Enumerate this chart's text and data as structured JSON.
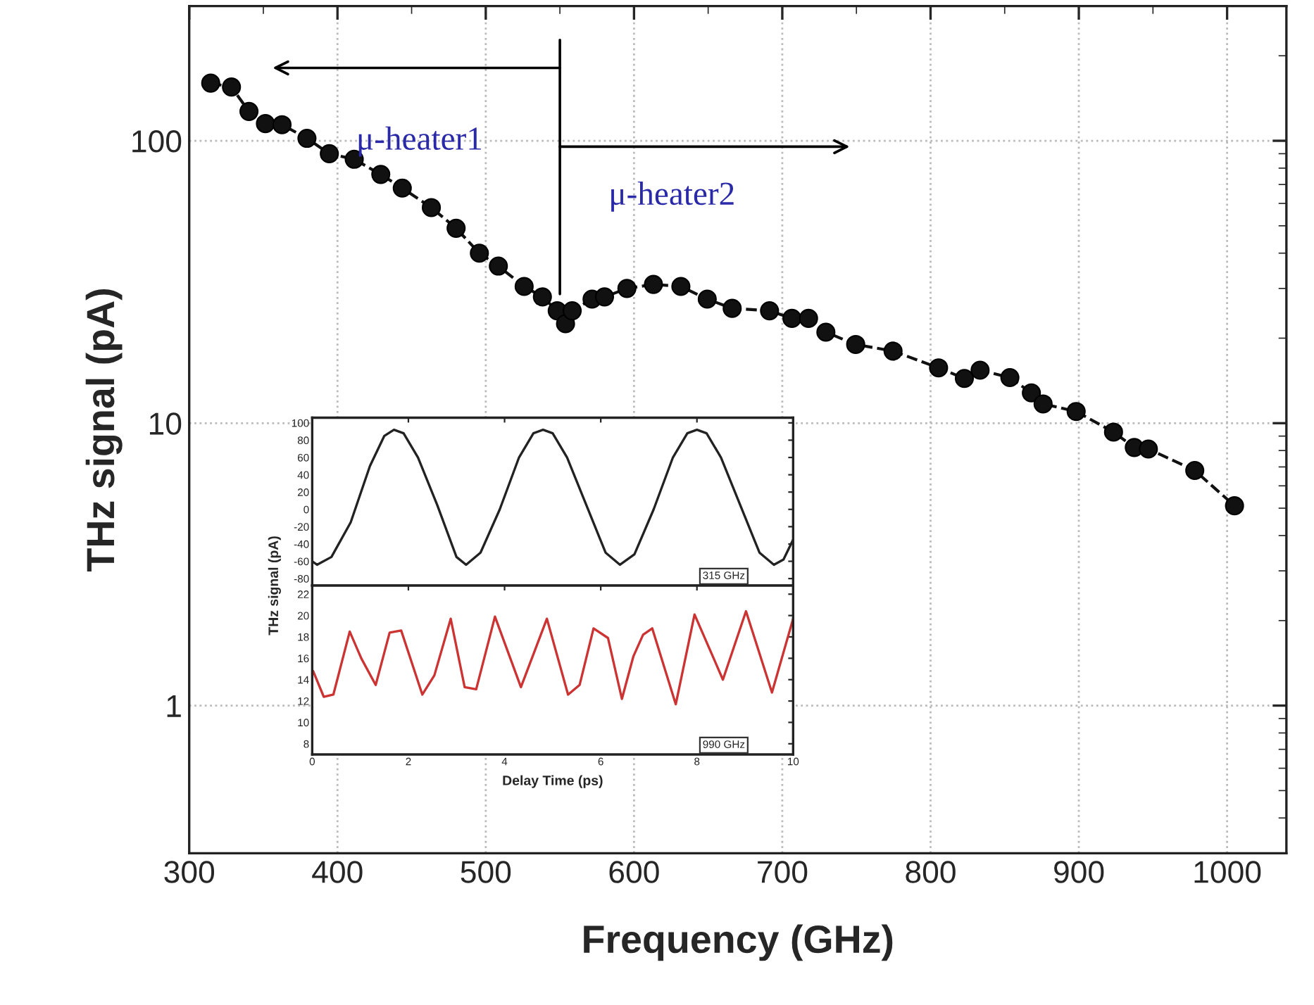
{
  "chart_data": [
    {
      "type": "line",
      "xlabel": "Frequency (GHz)",
      "ylabel": "THz signal (pA)",
      "log": "y",
      "xlim": [
        300,
        1040
      ],
      "ylim": [
        0.3,
        300
      ],
      "xticks": [
        300,
        400,
        500,
        600,
        700,
        800,
        900,
        1000
      ],
      "yticks": [
        1,
        10,
        100
      ],
      "grid": true,
      "marker": "circle",
      "line_style": "dashed",
      "x": [
        314.5,
        328.5,
        340.3,
        351.4,
        362.6,
        379.4,
        394.5,
        411.3,
        429.2,
        443.7,
        463.3,
        480,
        495.7,
        508.5,
        525.9,
        538.2,
        548.2,
        553.8,
        558.3,
        571.7,
        580.1,
        595.2,
        613.1,
        631.6,
        649.4,
        666.2,
        691.4,
        706.5,
        717.7,
        729.4,
        749.5,
        774.7,
        805.4,
        822.8,
        833.4,
        853.5,
        868,
        875.9,
        898.2,
        923.4,
        937.4,
        946.9,
        978.2,
        1005
      ],
      "series": [
        {
          "color": "#111111",
          "values": [
            160,
            155,
            127,
            115,
            114,
            102,
            90,
            86,
            76,
            68,
            58,
            49,
            40,
            36,
            30.5,
            28,
            25,
            22.5,
            25,
            27.5,
            28,
            30,
            31,
            30.5,
            27.5,
            25.5,
            25,
            23.5,
            23.5,
            21,
            19,
            18,
            15.7,
            14.4,
            15.4,
            14.5,
            12.8,
            11.7,
            11,
            9.3,
            8.2,
            8.1,
            6.8,
            5.1
          ]
        }
      ],
      "ref_lines": [
        {
          "axis": "x",
          "value": 550,
          "color": "#000000",
          "line_style": "solid"
        }
      ],
      "annotations": [
        "μ-heater1",
        "μ-heater2"
      ]
    },
    {
      "type": "line",
      "ylabel": "THz signal (pA)",
      "xlim": [
        0,
        10
      ],
      "ylim": [
        -88,
        106
      ],
      "xticks": [
        0,
        2,
        4,
        6,
        8,
        10
      ],
      "yticks": [
        -80,
        -60,
        -40,
        -20,
        0,
        20,
        40,
        60,
        80,
        100
      ],
      "tick_labels": "y",
      "x": [
        0,
        0.1,
        0.4,
        0.8,
        1.2,
        1.5,
        1.7,
        1.9,
        2.2,
        2.6,
        3.0,
        3.2,
        3.5,
        3.9,
        4.3,
        4.6,
        4.8,
        5.0,
        5.3,
        5.7,
        6.1,
        6.4,
        6.7,
        7.1,
        7.5,
        7.8,
        8.0,
        8.2,
        8.5,
        8.9,
        9.3,
        9.6,
        9.8,
        10
      ],
      "series": [
        {
          "color": "#222222",
          "values": [
            -60,
            -64,
            -55,
            -15,
            50,
            85,
            92,
            88,
            60,
            5,
            -55,
            -64,
            -50,
            0,
            60,
            88,
            92,
            88,
            60,
            5,
            -50,
            -64,
            -52,
            0,
            60,
            88,
            92,
            88,
            60,
            5,
            -50,
            -64,
            -58,
            -35
          ]
        }
      ],
      "annotations": [
        "315 GHz"
      ]
    },
    {
      "type": "line",
      "xlabel": "Delay Time (ps)",
      "xlim": [
        0,
        10
      ],
      "ylim": [
        7,
        22.8
      ],
      "xticks": [
        0,
        2,
        4,
        6,
        8,
        10
      ],
      "yticks": [
        8,
        10,
        12,
        14,
        16,
        18,
        20,
        22
      ],
      "x": [
        0.02,
        0.24,
        0.44,
        0.78,
        1.02,
        1.32,
        1.61,
        1.85,
        2.29,
        2.54,
        2.88,
        3.17,
        3.41,
        3.8,
        4.34,
        4.88,
        5.32,
        5.56,
        5.85,
        6.15,
        6.44,
        6.68,
        6.88,
        7.07,
        7.56,
        7.95,
        8.54,
        9.02,
        9.56,
        10
      ],
      "series": [
        {
          "color": "#cc3333",
          "values": [
            14.8,
            12.4,
            12.6,
            18.5,
            16,
            13.5,
            18.4,
            18.6,
            12.6,
            14.4,
            19.7,
            13.3,
            13.1,
            19.9,
            13.3,
            19.7,
            12.6,
            13.5,
            18.8,
            17.9,
            12.2,
            16.2,
            18.2,
            18.8,
            11.7,
            20.1,
            14,
            20.4,
            12.8,
            19.7
          ]
        }
      ],
      "annotations": [
        "990 GHz"
      ]
    }
  ]
}
